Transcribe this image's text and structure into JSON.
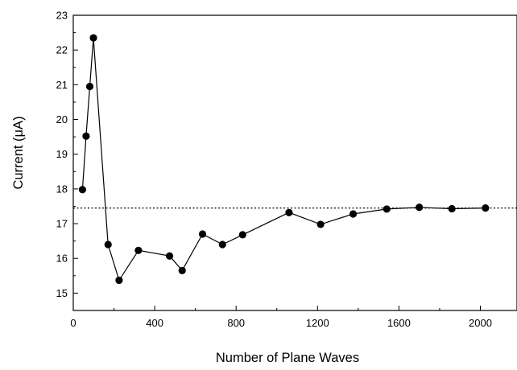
{
  "chart_data": {
    "type": "line",
    "xlabel": "Number of Plane Waves",
    "ylabel": "Current (μA)",
    "xlim": [
      0,
      2180
    ],
    "ylim": [
      14.5,
      23
    ],
    "x_ticks": [
      0,
      400,
      800,
      1200,
      1600,
      2000
    ],
    "x_tick_labels": [
      "0",
      "400",
      "800",
      "1200",
      "1600",
      "2000"
    ],
    "y_ticks": [
      15,
      16,
      17,
      18,
      19,
      20,
      21,
      22,
      23
    ],
    "y_tick_labels": [
      "15",
      "16",
      "17",
      "18",
      "19",
      "20",
      "21",
      "22",
      "23"
    ],
    "grid": false,
    "reference_line": {
      "y": 17.45,
      "style": "dotted"
    },
    "series": [
      {
        "x": [
          45,
          63,
          81,
          99,
          171,
          225,
          320,
          473,
          535,
          635,
          733,
          832,
          1060,
          1215,
          1375,
          1540,
          1700,
          1860,
          2025
        ],
        "y": [
          17.98,
          19.52,
          20.95,
          22.35,
          16.4,
          15.37,
          16.23,
          16.07,
          15.65,
          16.7,
          16.4,
          16.68,
          17.32,
          16.98,
          17.28,
          17.42,
          17.47,
          17.43,
          17.45
        ],
        "marker": "filled-circle",
        "color": "#000000"
      }
    ]
  }
}
